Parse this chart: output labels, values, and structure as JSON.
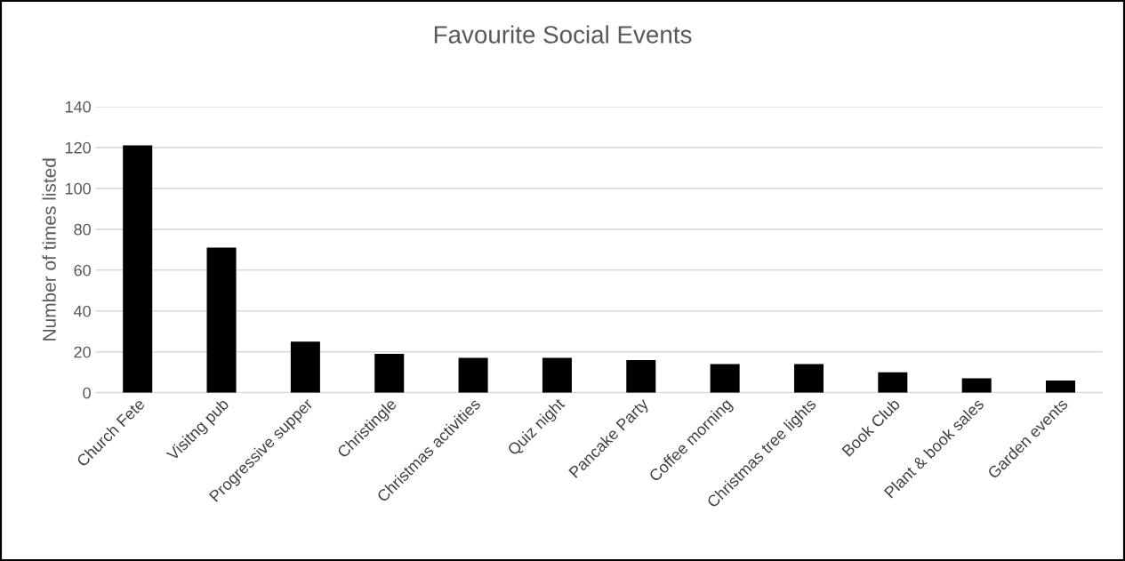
{
  "chart_data": {
    "type": "bar",
    "title": "Favourite Social Events",
    "ylabel": "Number of times listed",
    "categories": [
      "Church Fete",
      "Visitng pub",
      "Progressive supper",
      "Christingle",
      "Christmas activities",
      "Quiz night",
      "Pancake Party",
      "Coffee morning",
      "Christmas tree lights",
      "Book Club",
      "Plant & book sales",
      "Garden events"
    ],
    "values": [
      121,
      71,
      25,
      19,
      17,
      17,
      16,
      14,
      14,
      10,
      7,
      6
    ],
    "color": "#000000",
    "ylim": [
      0,
      140
    ],
    "yticks": [
      0,
      20,
      40,
      60,
      80,
      100,
      120,
      140
    ],
    "grid": "y",
    "legend": false
  }
}
